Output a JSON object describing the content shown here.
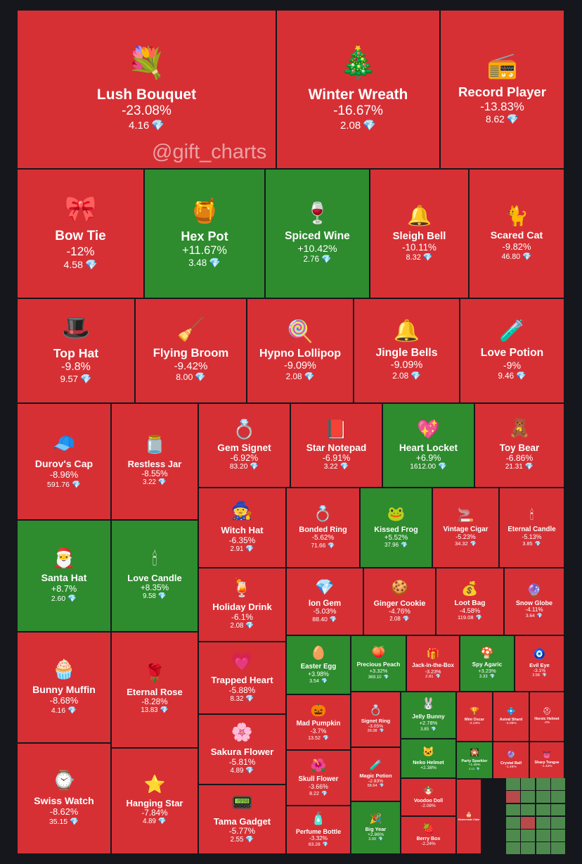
{
  "watermark": "@gift_charts",
  "colors": {
    "negative": "#d63035",
    "positive": "#2e8b2e",
    "background": "#15171c",
    "gem": "#7fd4ff"
  },
  "chart_data": {
    "type": "treemap",
    "currency_icon": "diamond-icon",
    "items": [
      {
        "name": "Lush Bouquet",
        "change": "-23.08%",
        "price": "4.16",
        "icon": "💐"
      },
      {
        "name": "Winter Wreath",
        "change": "-16.67%",
        "price": "2.08",
        "icon": "🎄"
      },
      {
        "name": "Record Player",
        "change": "-13.83%",
        "price": "8.62",
        "icon": "📻"
      },
      {
        "name": "Bow Tie",
        "change": "-12%",
        "price": "4.58",
        "icon": "🎀"
      },
      {
        "name": "Hex Pot",
        "change": "+11.67%",
        "price": "3.48",
        "icon": "🍯"
      },
      {
        "name": "Spiced Wine",
        "change": "+10.42%",
        "price": "2.76",
        "icon": "🍷"
      },
      {
        "name": "Sleigh Bell",
        "change": "-10.11%",
        "price": "8.32",
        "icon": "🔔"
      },
      {
        "name": "Scared Cat",
        "change": "-9.82%",
        "price": "46.80",
        "icon": "🐈"
      },
      {
        "name": "Top Hat",
        "change": "-9.8%",
        "price": "9.57",
        "icon": "🎩"
      },
      {
        "name": "Flying Broom",
        "change": "-9.42%",
        "price": "8.00",
        "icon": "🧹"
      },
      {
        "name": "Hypno Lollipop",
        "change": "-9.09%",
        "price": "2.08",
        "icon": "🍭"
      },
      {
        "name": "Jingle Bells",
        "change": "-9.09%",
        "price": "2.08",
        "icon": "🔔"
      },
      {
        "name": "Love Potion",
        "change": "-9%",
        "price": "9.46",
        "icon": "🧪"
      },
      {
        "name": "Durov's Cap",
        "change": "-8.96%",
        "price": "591.76",
        "icon": "🧢"
      },
      {
        "name": "Restless Jar",
        "change": "-8.55%",
        "price": "3.22",
        "icon": "🫙"
      },
      {
        "name": "Gem Signet",
        "change": "-6.92%",
        "price": "83.20",
        "icon": "💍"
      },
      {
        "name": "Star Notepad",
        "change": "-6.91%",
        "price": "3.22",
        "icon": "📕"
      },
      {
        "name": "Heart Locket",
        "change": "+6.9%",
        "price": "1612.00",
        "icon": "💖"
      },
      {
        "name": "Toy Bear",
        "change": "-6.86%",
        "price": "21.31",
        "icon": "🧸"
      },
      {
        "name": "Witch Hat",
        "change": "-6.35%",
        "price": "2.91",
        "icon": "🧙"
      },
      {
        "name": "Bonded Ring",
        "change": "-5.62%",
        "price": "71.66",
        "icon": "💍"
      },
      {
        "name": "Kissed Frog",
        "change": "+5.52%",
        "price": "37.96",
        "icon": "🐸"
      },
      {
        "name": "Vintage Cigar",
        "change": "-5.23%",
        "price": "34.32",
        "icon": "🚬"
      },
      {
        "name": "Eternal Candle",
        "change": "-5.13%",
        "price": "3.85",
        "icon": "🕯"
      },
      {
        "name": "Santa Hat",
        "change": "+8.7%",
        "price": "2.60",
        "icon": "🎅"
      },
      {
        "name": "Love Candle",
        "change": "+8.35%",
        "price": "9.58",
        "icon": "🕯"
      },
      {
        "name": "Holiday Drink",
        "change": "-6.1%",
        "price": "2.08",
        "icon": "🍹"
      },
      {
        "name": "Ion Gem",
        "change": "-5.03%",
        "price": "88.40",
        "icon": "💎"
      },
      {
        "name": "Ginger Cookie",
        "change": "-4.76%",
        "price": "2.08",
        "icon": "🍪"
      },
      {
        "name": "Loot Bag",
        "change": "-4.58%",
        "price": "119.08",
        "icon": "💰"
      },
      {
        "name": "Snow Globe",
        "change": "-4.11%",
        "price": "3.64",
        "icon": "🔮"
      },
      {
        "name": "Easter Egg",
        "change": "+3.98%",
        "price": "3.54",
        "icon": "🥚"
      },
      {
        "name": "Precious Peach",
        "change": "+3.32%",
        "price": "369.10",
        "icon": "🍑"
      },
      {
        "name": "Jack-in-the-Box",
        "change": "-3.23%",
        "price": "2.81",
        "icon": "🎁"
      },
      {
        "name": "Spy Agaric",
        "change": "+3.23%",
        "price": "3.33",
        "icon": "🍄"
      },
      {
        "name": "Evil Eye",
        "change": "-3.1%",
        "price": "3.58",
        "icon": "🧿"
      },
      {
        "name": "Bunny Muffin",
        "change": "-8.68%",
        "price": "4.16",
        "icon": "🧁"
      },
      {
        "name": "Eternal Rose",
        "change": "-8.28%",
        "price": "13.83",
        "icon": "🌹"
      },
      {
        "name": "Trapped Heart",
        "change": "-5.88%",
        "price": "8.32",
        "icon": "💗"
      },
      {
        "name": "Mad Pumpkin",
        "change": "-3.7%",
        "price": "13.52",
        "icon": "🎃"
      },
      {
        "name": "Signet Ring",
        "change": "-3.05%",
        "price": "26.08",
        "icon": "💍"
      },
      {
        "name": "Jelly Bunny",
        "change": "+2.78%",
        "price": "3.85",
        "icon": "🐰"
      },
      {
        "name": "Mini Oscar",
        "change": "-2.13%",
        "price": "",
        "icon": "🏆"
      },
      {
        "name": "Astral Shard",
        "change": "-2.08%",
        "price": "",
        "icon": "💠"
      },
      {
        "name": "Heroic Helmet",
        "change": "-2%",
        "price": "",
        "icon": "⛑"
      },
      {
        "name": "Neko Helmet",
        "change": "+2.38%",
        "price": "",
        "icon": "🐱"
      },
      {
        "name": "Party Sparkler",
        "change": "+1.45%",
        "price": "2.13",
        "icon": "🎇"
      },
      {
        "name": "Crystal Ball",
        "change": "-1.46%",
        "price": "",
        "icon": "🔮"
      },
      {
        "name": "Sharp Tongue",
        "change": "-1.42%",
        "price": "",
        "icon": "👅"
      },
      {
        "name": "Sakura Flower",
        "change": "-5.81%",
        "price": "4.89",
        "icon": "🌸"
      },
      {
        "name": "Skull Flower",
        "change": "-3.66%",
        "price": "8.22",
        "icon": "🌺"
      },
      {
        "name": "Magic Potion",
        "change": "-2.93%",
        "price": "58.64",
        "icon": "🧪"
      },
      {
        "name": "Voodoo Doll",
        "change": "-2.08%",
        "price": "",
        "icon": "🪆"
      },
      {
        "name": "Swiss Watch",
        "change": "-8.62%",
        "price": "35.15",
        "icon": "⌚"
      },
      {
        "name": "Hanging Star",
        "change": "-7.84%",
        "price": "4.89",
        "icon": "⭐"
      },
      {
        "name": "Tama Gadget",
        "change": "-5.77%",
        "price": "2.55",
        "icon": "📟"
      },
      {
        "name": "Perfume Bottle",
        "change": "-3.32%",
        "price": "83.28",
        "icon": "🧴"
      },
      {
        "name": "Big Year",
        "change": "+2.86%",
        "price": "3.00",
        "icon": "🎉"
      },
      {
        "name": "Berry Box",
        "change": "-2.24%",
        "price": "",
        "icon": "🍓"
      },
      {
        "name": "Homemade Cake",
        "change": "",
        "price": "",
        "icon": "🎂"
      }
    ]
  }
}
